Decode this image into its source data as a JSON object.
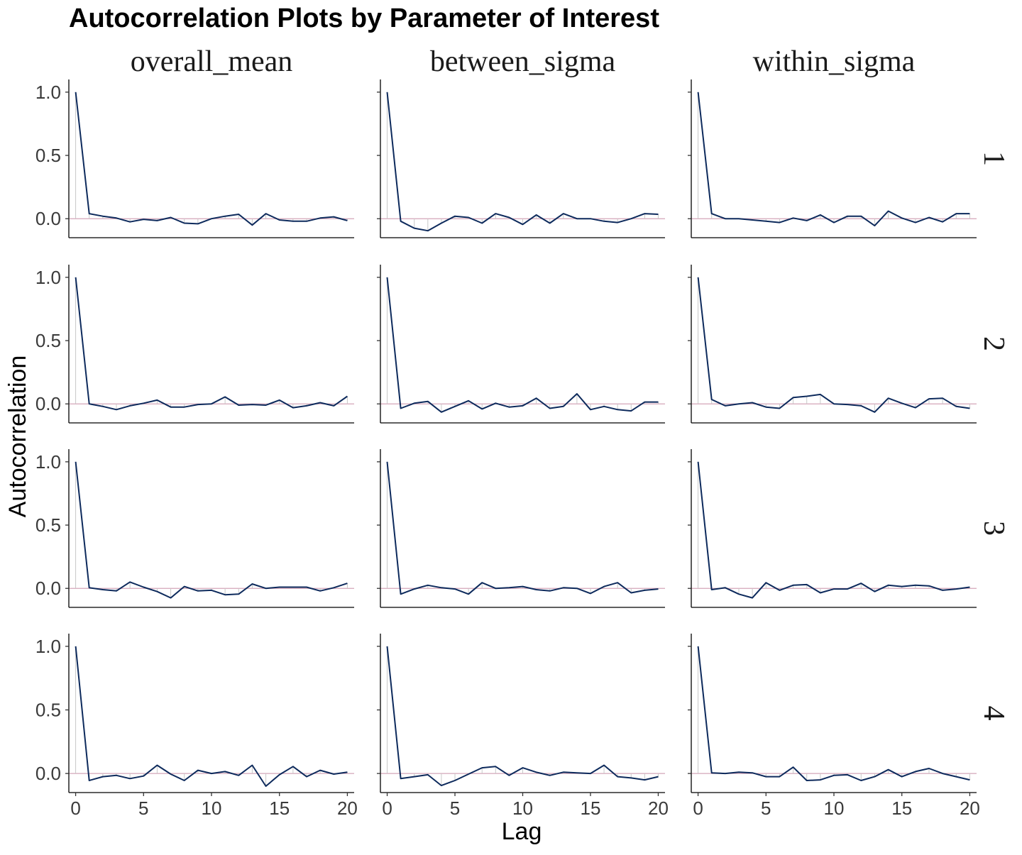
{
  "chart_data": {
    "type": "line",
    "title": "Autocorrelation Plots by Parameter of Interest",
    "xlabel": "Lag",
    "ylabel": "Autocorrelation",
    "columns": [
      "overall_mean",
      "between_sigma",
      "within_sigma"
    ],
    "rows": [
      "1",
      "2",
      "3",
      "4"
    ],
    "x": [
      0,
      1,
      2,
      3,
      4,
      5,
      6,
      7,
      8,
      9,
      10,
      11,
      12,
      13,
      14,
      15,
      16,
      17,
      18,
      19,
      20
    ],
    "x_ticks": [
      0,
      5,
      10,
      15,
      20
    ],
    "x_tick_labels": [
      "0",
      "5",
      "10",
      "15",
      "20"
    ],
    "xlim": [
      -0.5,
      20.5
    ],
    "y_ticks": [
      0.0,
      0.5,
      1.0
    ],
    "y_tick_labels": [
      "0.0",
      "0.5",
      "1.0"
    ],
    "ylim": [
      -0.15,
      1.1
    ],
    "reference_line": 0,
    "colors": {
      "line": "#0d2a5c",
      "reference": "#d4a5b8",
      "bars": "#c8c8c8",
      "axis": "#000000"
    },
    "grid": false,
    "panels": [
      {
        "row": "1",
        "col": "overall_mean",
        "values": [
          1.0,
          0.04,
          0.02,
          0.005,
          -0.025,
          -0.005,
          -0.015,
          0.01,
          -0.035,
          -0.04,
          0.0,
          0.02,
          0.035,
          -0.05,
          0.04,
          -0.01,
          -0.02,
          -0.02,
          0.005,
          0.015,
          -0.015
        ]
      },
      {
        "row": "1",
        "col": "between_sigma",
        "values": [
          1.0,
          -0.02,
          -0.075,
          -0.095,
          -0.035,
          0.02,
          0.01,
          -0.035,
          0.04,
          0.01,
          -0.045,
          0.03,
          -0.035,
          0.04,
          0.0,
          0.0,
          -0.02,
          -0.03,
          0.0,
          0.04,
          0.035
        ]
      },
      {
        "row": "1",
        "col": "within_sigma",
        "values": [
          1.0,
          0.04,
          0.0,
          0.0,
          -0.01,
          -0.02,
          -0.03,
          0.005,
          -0.015,
          0.03,
          -0.03,
          0.02,
          0.02,
          -0.055,
          0.06,
          0.005,
          -0.03,
          0.01,
          -0.025,
          0.04,
          0.04
        ]
      },
      {
        "row": "2",
        "col": "overall_mean",
        "values": [
          1.0,
          0.0,
          -0.02,
          -0.045,
          -0.015,
          0.005,
          0.03,
          -0.025,
          -0.025,
          -0.005,
          0.0,
          0.055,
          -0.01,
          -0.005,
          -0.01,
          0.03,
          -0.03,
          -0.015,
          0.01,
          -0.015,
          0.06
        ]
      },
      {
        "row": "2",
        "col": "between_sigma",
        "values": [
          1.0,
          -0.035,
          0.005,
          0.02,
          -0.065,
          -0.02,
          0.025,
          -0.04,
          0.005,
          -0.025,
          -0.015,
          0.045,
          -0.035,
          -0.02,
          0.08,
          -0.045,
          -0.02,
          -0.045,
          -0.055,
          0.015,
          0.015
        ]
      },
      {
        "row": "2",
        "col": "within_sigma",
        "values": [
          1.0,
          0.035,
          -0.015,
          0.0,
          0.01,
          -0.025,
          -0.035,
          0.05,
          0.06,
          0.075,
          0.0,
          -0.005,
          -0.015,
          -0.065,
          0.045,
          0.005,
          -0.03,
          0.04,
          0.045,
          -0.02,
          -0.035
        ]
      },
      {
        "row": "3",
        "col": "overall_mean",
        "values": [
          1.0,
          0.005,
          -0.01,
          -0.02,
          0.05,
          0.01,
          -0.025,
          -0.075,
          0.015,
          -0.02,
          -0.015,
          -0.05,
          -0.045,
          0.035,
          0.0,
          0.01,
          0.01,
          0.01,
          -0.02,
          0.005,
          0.04
        ]
      },
      {
        "row": "3",
        "col": "between_sigma",
        "values": [
          1.0,
          -0.045,
          -0.005,
          0.025,
          0.005,
          -0.005,
          -0.045,
          0.045,
          0.0,
          0.005,
          0.015,
          -0.01,
          -0.02,
          0.005,
          0.0,
          -0.04,
          0.015,
          0.045,
          -0.035,
          -0.015,
          -0.005
        ]
      },
      {
        "row": "3",
        "col": "within_sigma",
        "values": [
          1.0,
          -0.01,
          0.005,
          -0.045,
          -0.075,
          0.045,
          -0.015,
          0.025,
          0.03,
          -0.035,
          -0.005,
          -0.005,
          0.04,
          -0.025,
          0.025,
          0.015,
          0.025,
          0.02,
          -0.015,
          -0.005,
          0.01
        ]
      },
      {
        "row": "4",
        "col": "overall_mean",
        "values": [
          1.0,
          -0.055,
          -0.025,
          -0.015,
          -0.04,
          -0.02,
          0.065,
          -0.005,
          -0.055,
          0.025,
          0.0,
          0.015,
          -0.015,
          0.065,
          -0.1,
          -0.01,
          0.055,
          -0.025,
          0.025,
          -0.005,
          0.01
        ]
      },
      {
        "row": "4",
        "col": "between_sigma",
        "values": [
          1.0,
          -0.04,
          -0.025,
          -0.01,
          -0.095,
          -0.055,
          -0.005,
          0.045,
          0.055,
          -0.015,
          0.045,
          0.01,
          -0.015,
          0.01,
          0.005,
          0.0,
          0.065,
          -0.025,
          -0.035,
          -0.05,
          -0.025
        ]
      },
      {
        "row": "4",
        "col": "within_sigma",
        "values": [
          1.0,
          0.005,
          0.0,
          0.01,
          0.005,
          -0.025,
          -0.025,
          0.05,
          -0.055,
          -0.05,
          -0.015,
          -0.01,
          -0.055,
          -0.025,
          0.03,
          -0.025,
          0.015,
          0.04,
          0.0,
          -0.025,
          -0.05
        ]
      }
    ]
  }
}
